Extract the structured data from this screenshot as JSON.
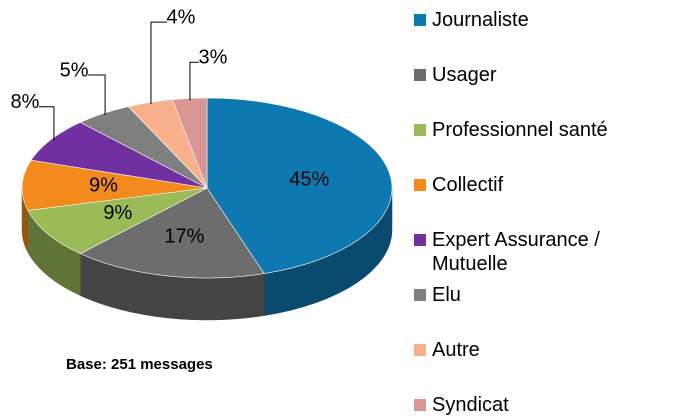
{
  "chart_data": {
    "type": "pie",
    "annotation": "Base: 251 messages",
    "categories": [
      "Journaliste",
      "Usager",
      "Professionnel santé",
      "Collectif",
      "Expert Assurance / Mutuelle",
      "Elu",
      "Autre",
      "Syndicat"
    ],
    "values": [
      45,
      17,
      9,
      9,
      8,
      5,
      4,
      3
    ],
    "value_labels": [
      "45%",
      "17%",
      "9%",
      "9%",
      "8%",
      "5%",
      "4%",
      "3%"
    ],
    "colors": [
      "#0e78b1",
      "#6d6d6d",
      "#9bbb59",
      "#f28a1e",
      "#7030a0",
      "#7f7f7f",
      "#f9b08c",
      "#d99694"
    ]
  }
}
